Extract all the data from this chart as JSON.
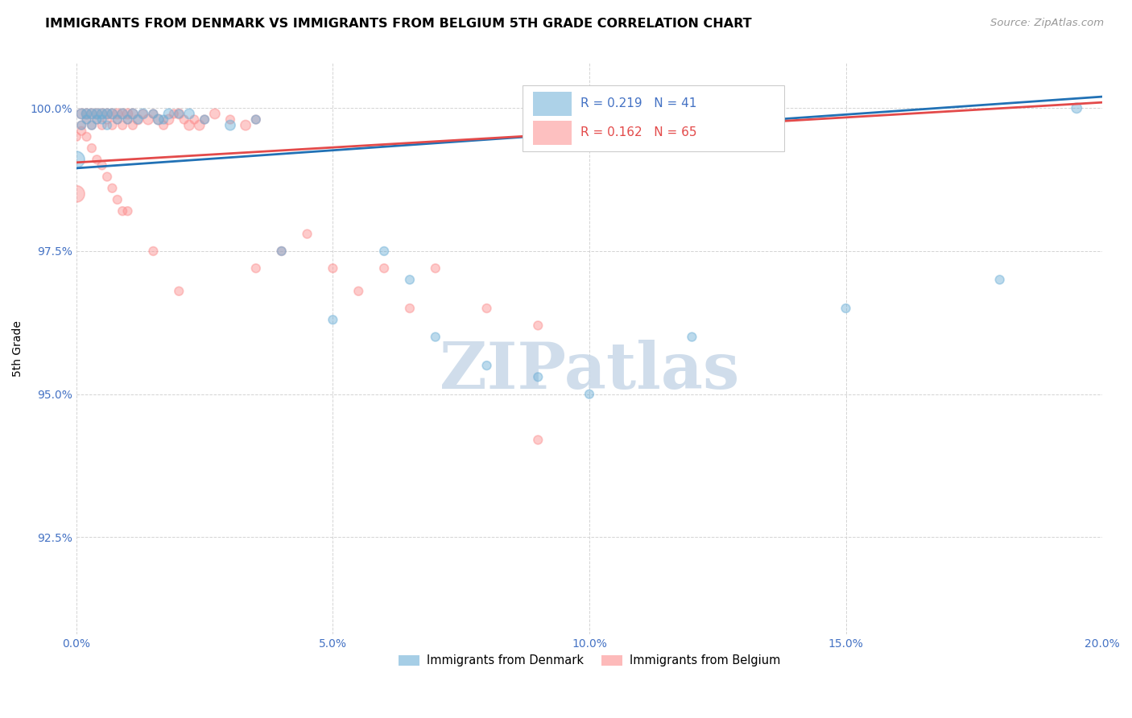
{
  "title": "IMMIGRANTS FROM DENMARK VS IMMIGRANTS FROM BELGIUM 5TH GRADE CORRELATION CHART",
  "source": "Source: ZipAtlas.com",
  "ylabel": "5th Grade",
  "ytick_labels": [
    "92.5%",
    "95.0%",
    "97.5%",
    "100.0%"
  ],
  "ytick_values": [
    0.925,
    0.95,
    0.975,
    1.0
  ],
  "xlim": [
    0.0,
    0.2
  ],
  "ylim": [
    0.908,
    1.008
  ],
  "legend_denmark": "Immigrants from Denmark",
  "legend_belgium": "Immigrants from Belgium",
  "R_denmark": 0.219,
  "N_denmark": 41,
  "R_belgium": 0.162,
  "N_belgium": 65,
  "color_denmark": "#6baed6",
  "color_belgium": "#fc8d8d",
  "trendline_color_denmark": "#2171b5",
  "trendline_color_belgium": "#e34a4a",
  "denmark_x": [
    0.0,
    0.001,
    0.001,
    0.002,
    0.002,
    0.003,
    0.003,
    0.004,
    0.004,
    0.005,
    0.005,
    0.006,
    0.006,
    0.007,
    0.008,
    0.009,
    0.01,
    0.011,
    0.012,
    0.013,
    0.015,
    0.016,
    0.017,
    0.018,
    0.02,
    0.022,
    0.025,
    0.03,
    0.035,
    0.04,
    0.05,
    0.06,
    0.065,
    0.07,
    0.08,
    0.09,
    0.1,
    0.12,
    0.15,
    0.18,
    0.195
  ],
  "denmark_y": [
    0.991,
    0.999,
    0.997,
    0.999,
    0.998,
    0.999,
    0.997,
    0.999,
    0.998,
    0.999,
    0.998,
    0.999,
    0.997,
    0.999,
    0.998,
    0.999,
    0.998,
    0.999,
    0.998,
    0.999,
    0.999,
    0.998,
    0.998,
    0.999,
    0.999,
    0.999,
    0.998,
    0.997,
    0.998,
    0.975,
    0.963,
    0.975,
    0.97,
    0.96,
    0.955,
    0.953,
    0.95,
    0.96,
    0.965,
    0.97,
    1.0
  ],
  "denmark_size": [
    220,
    80,
    60,
    80,
    60,
    80,
    60,
    80,
    60,
    80,
    60,
    80,
    60,
    80,
    60,
    80,
    60,
    80,
    60,
    80,
    60,
    80,
    60,
    80,
    60,
    80,
    60,
    80,
    60,
    60,
    60,
    60,
    60,
    60,
    60,
    60,
    60,
    60,
    60,
    60,
    80
  ],
  "belgium_x": [
    0.0,
    0.001,
    0.001,
    0.002,
    0.002,
    0.003,
    0.003,
    0.004,
    0.004,
    0.005,
    0.005,
    0.006,
    0.006,
    0.007,
    0.007,
    0.008,
    0.008,
    0.009,
    0.009,
    0.01,
    0.01,
    0.011,
    0.011,
    0.012,
    0.013,
    0.014,
    0.015,
    0.016,
    0.017,
    0.018,
    0.019,
    0.02,
    0.021,
    0.022,
    0.023,
    0.024,
    0.025,
    0.027,
    0.03,
    0.033,
    0.035,
    0.04,
    0.045,
    0.05,
    0.055,
    0.06,
    0.065,
    0.07,
    0.08,
    0.09,
    0.0,
    0.001,
    0.002,
    0.003,
    0.004,
    0.005,
    0.006,
    0.007,
    0.008,
    0.009,
    0.01,
    0.015,
    0.02,
    0.035,
    0.09
  ],
  "belgium_y": [
    0.985,
    0.999,
    0.997,
    0.999,
    0.998,
    0.999,
    0.997,
    0.999,
    0.998,
    0.999,
    0.997,
    0.999,
    0.998,
    0.999,
    0.997,
    0.999,
    0.998,
    0.999,
    0.997,
    0.999,
    0.998,
    0.999,
    0.997,
    0.998,
    0.999,
    0.998,
    0.999,
    0.998,
    0.997,
    0.998,
    0.999,
    0.999,
    0.998,
    0.997,
    0.998,
    0.997,
    0.998,
    0.999,
    0.998,
    0.997,
    0.998,
    0.975,
    0.978,
    0.972,
    0.968,
    0.972,
    0.965,
    0.972,
    0.965,
    0.962,
    0.995,
    0.996,
    0.995,
    0.993,
    0.991,
    0.99,
    0.988,
    0.986,
    0.984,
    0.982,
    0.982,
    0.975,
    0.968,
    0.972,
    0.942
  ],
  "belgium_size": [
    220,
    80,
    60,
    80,
    60,
    80,
    60,
    80,
    60,
    80,
    60,
    80,
    60,
    80,
    60,
    80,
    60,
    80,
    60,
    80,
    60,
    80,
    60,
    80,
    60,
    80,
    60,
    80,
    60,
    80,
    60,
    80,
    60,
    80,
    60,
    80,
    60,
    80,
    60,
    80,
    60,
    60,
    60,
    60,
    60,
    60,
    60,
    60,
    60,
    60,
    60,
    60,
    60,
    60,
    60,
    60,
    60,
    60,
    60,
    60,
    60,
    60,
    60,
    60,
    60
  ],
  "watermark_text": "ZIPatlas",
  "watermark_color": "#c8d8e8",
  "trendline_dk_x0": 0.0,
  "trendline_dk_y0": 0.9895,
  "trendline_dk_x1": 0.2,
  "trendline_dk_y1": 1.002,
  "trendline_be_x0": 0.0,
  "trendline_be_y0": 0.9905,
  "trendline_be_x1": 0.2,
  "trendline_be_y1": 1.001
}
